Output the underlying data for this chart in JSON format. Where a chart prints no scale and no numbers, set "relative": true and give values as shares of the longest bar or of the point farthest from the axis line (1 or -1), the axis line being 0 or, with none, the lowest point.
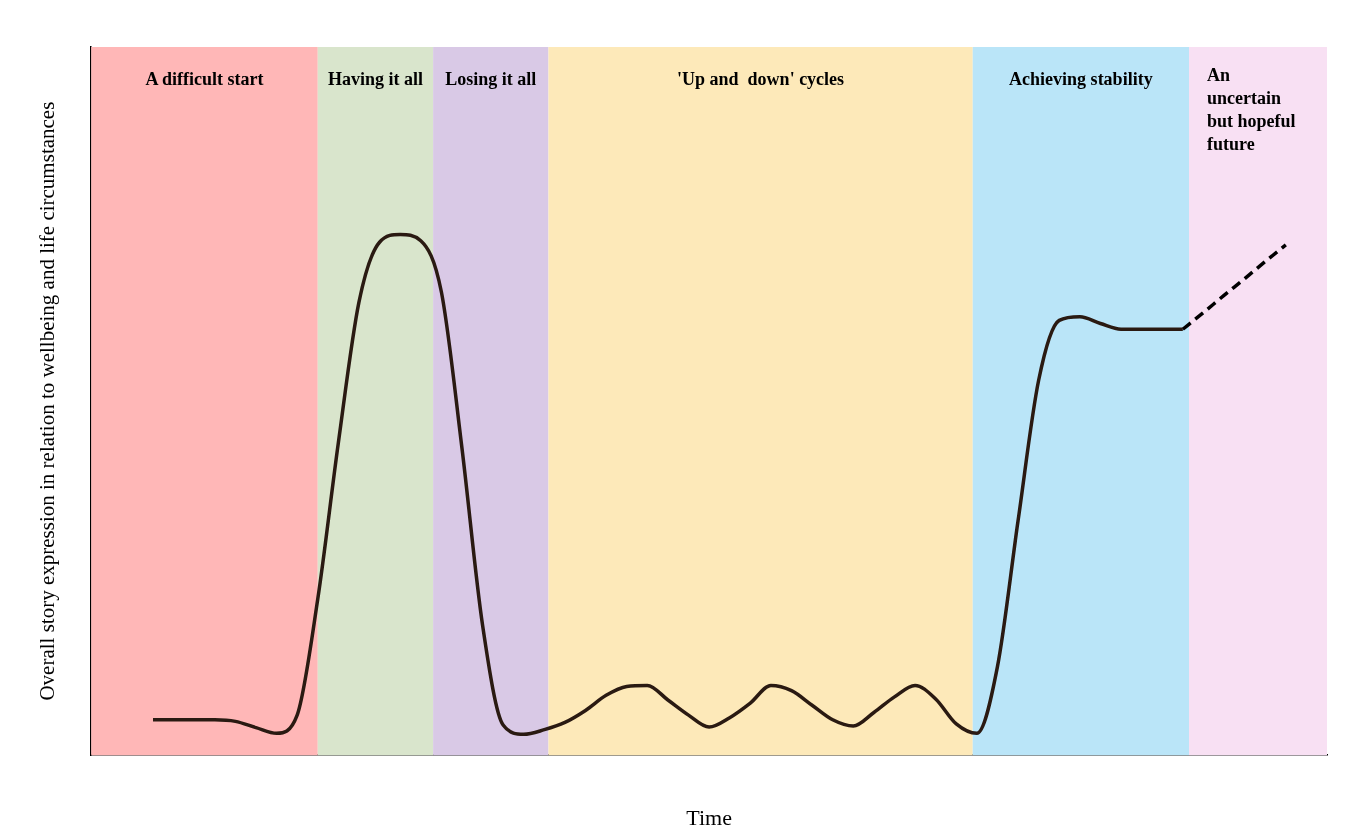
{
  "chart_data": {
    "type": "line",
    "relative": true,
    "xlabel": "Time",
    "ylabel": "Overall story expression in relation to wellbeing and life circumstances",
    "grid": false,
    "legend": false,
    "marker": "none",
    "categories": [
      null,
      null,
      null,
      null,
      null,
      null,
      null,
      null,
      null,
      null,
      null,
      null,
      null,
      null,
      null,
      null,
      null,
      null,
      null,
      null,
      null,
      null,
      null,
      null,
      null,
      null,
      null,
      null,
      null,
      null,
      null,
      null,
      null,
      null,
      null,
      null,
      null,
      null,
      null,
      null,
      null,
      null,
      null,
      null,
      null,
      null,
      null,
      null,
      null,
      null,
      null,
      null,
      null,
      null,
      null,
      null,
      null,
      null,
      null,
      null,
      null
    ],
    "series": [
      {
        "color": "#2a1a12",
        "line_style": "solid",
        "values": [
          null,
          null,
          null,
          0.068,
          0.068,
          0.068,
          0.068,
          0.065,
          0.053,
          0.042,
          0.077,
          0.3,
          0.6,
          0.87,
          0.985,
          1,
          0.988,
          0.89,
          0.59,
          0.25,
          0.058,
          0.04,
          0.049,
          0.063,
          0.086,
          0.115,
          0.132,
          0.134,
          0.106,
          0.077,
          0.054,
          0.072,
          0.1,
          0.134,
          0.124,
          0.096,
          0.068,
          0.056,
          0.082,
          0.112,
          0.134,
          0.108,
          0.06,
          0.042,
          0.17,
          0.45,
          0.72,
          0.835,
          0.842,
          0.829,
          0.818,
          0.818,
          0.818,
          0.818,
          null,
          null,
          null,
          null,
          null,
          null,
          null
        ]
      },
      {
        "color": "#000000",
        "line_style": "dashed",
        "values": [
          null,
          null,
          null,
          null,
          null,
          null,
          null,
          null,
          null,
          null,
          null,
          null,
          null,
          null,
          null,
          null,
          null,
          null,
          null,
          null,
          null,
          null,
          null,
          null,
          null,
          null,
          null,
          null,
          null,
          null,
          null,
          null,
          null,
          null,
          null,
          null,
          null,
          null,
          null,
          null,
          null,
          null,
          null,
          null,
          null,
          null,
          null,
          null,
          null,
          null,
          null,
          null,
          null,
          0.818,
          0.85,
          0.883,
          0.915,
          0.948,
          0.98,
          null,
          null
        ]
      }
    ],
    "annotations": [
      "A difficult start",
      "Having it all",
      "Losing it all",
      "'Up and  down' cycles",
      "Achieving stability",
      "An uncertain but hopeful future"
    ]
  }
}
